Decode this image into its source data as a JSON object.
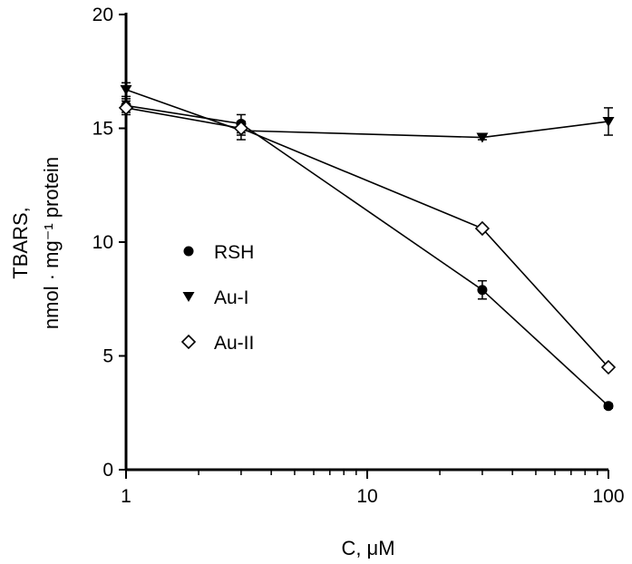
{
  "chart_data": {
    "type": "line",
    "xscale": "log",
    "x": [
      1,
      3,
      30,
      100
    ],
    "xlim": [
      1,
      100
    ],
    "ylim": [
      0,
      20
    ],
    "xticks": [
      1,
      10,
      100
    ],
    "xtick_labels": [
      "1",
      "10",
      "100"
    ],
    "yticks": [
      0,
      5,
      10,
      15,
      20
    ],
    "ytick_labels": [
      "0",
      "5",
      "10",
      "15",
      "20"
    ],
    "xlabel": "C, μM",
    "ylabel_line1": "TBARS,",
    "ylabel_line2": "nmol · mg⁻¹ protein",
    "grid": false,
    "legend_position": "center-left",
    "series": [
      {
        "name": "RSH",
        "marker": "filled-circle",
        "values": [
          16.0,
          15.2,
          7.9,
          2.8
        ],
        "err": [
          0.3,
          0.4,
          0.4,
          0.1
        ]
      },
      {
        "name": "Au-I",
        "marker": "filled-triangle-down",
        "values": [
          16.7,
          14.9,
          14.6,
          15.3
        ],
        "err": [
          0.3,
          0.4,
          0.1,
          0.6
        ]
      },
      {
        "name": "Au-II",
        "marker": "open-diamond",
        "values": [
          15.9,
          15.0,
          10.6,
          4.5
        ],
        "err": [
          0.3,
          0.3,
          0.1,
          0.1
        ]
      }
    ]
  }
}
